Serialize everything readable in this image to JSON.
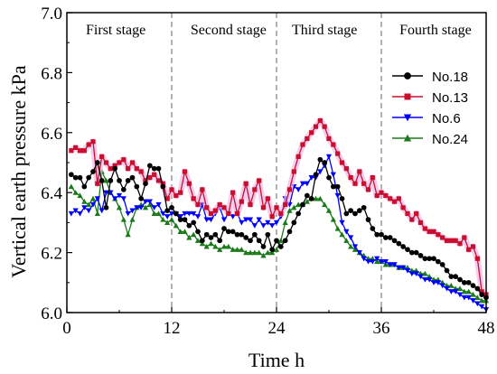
{
  "chart_data": {
    "type": "line",
    "xlabel": "Time h",
    "ylabel": "Vertical earth pressure kPa",
    "xlim": [
      0,
      48
    ],
    "ylim": [
      6.0,
      7.0
    ],
    "xticks": [
      0,
      12,
      24,
      36,
      48
    ],
    "yticks": [
      6.0,
      6.2,
      6.4,
      6.6,
      6.8,
      7.0
    ],
    "stage_dividers": [
      12,
      24,
      36
    ],
    "stages": [
      {
        "label": "First stage",
        "x_center": 5.6
      },
      {
        "label": "Second stage",
        "x_center": 18.5
      },
      {
        "label": "Third stage",
        "x_center": 29.5
      },
      {
        "label": "Fourth stage",
        "x_center": 42.2
      }
    ],
    "legend_position": "right",
    "series": [
      {
        "name": "No.18",
        "color": "#000000",
        "marker": "circle",
        "x": [
          0.5,
          1.0,
          1.5,
          2.0,
          2.5,
          3.0,
          3.5,
          4.0,
          4.5,
          5.0,
          5.5,
          6.0,
          6.5,
          7.0,
          7.5,
          8.0,
          8.5,
          9.0,
          9.5,
          10.0,
          10.5,
          11.0,
          11.5,
          12.0,
          12.5,
          13.0,
          13.5,
          14.0,
          14.5,
          15.0,
          15.5,
          16.0,
          16.5,
          17.0,
          17.5,
          18.0,
          18.5,
          19.0,
          19.5,
          20.0,
          20.5,
          21.0,
          21.5,
          22.0,
          22.5,
          23.0,
          23.5,
          24.0,
          24.5,
          25.0,
          25.5,
          26.0,
          26.5,
          27.0,
          27.5,
          28.0,
          28.5,
          29.0,
          29.5,
          30.0,
          30.5,
          31.0,
          31.5,
          32.0,
          32.5,
          33.0,
          33.5,
          34.0,
          34.5,
          35.0,
          35.5,
          36.0,
          36.5,
          37.0,
          37.5,
          38.0,
          38.5,
          39.0,
          39.5,
          40.0,
          40.5,
          41.0,
          41.5,
          42.0,
          42.5,
          43.0,
          43.5,
          44.0,
          44.5,
          45.0,
          45.5,
          46.0,
          46.5,
          47.0,
          47.5,
          48.0
        ],
        "y": [
          6.46,
          6.45,
          6.45,
          6.42,
          6.45,
          6.47,
          6.5,
          6.44,
          6.35,
          6.44,
          6.48,
          6.44,
          6.41,
          6.44,
          6.45,
          6.42,
          6.38,
          6.43,
          6.49,
          6.48,
          6.48,
          6.42,
          6.34,
          6.35,
          6.33,
          6.31,
          6.31,
          6.29,
          6.3,
          6.27,
          6.24,
          6.26,
          6.25,
          6.26,
          6.24,
          6.28,
          6.27,
          6.27,
          6.26,
          6.26,
          6.25,
          6.24,
          6.26,
          6.24,
          6.22,
          6.26,
          6.21,
          6.24,
          6.22,
          6.24,
          6.27,
          6.3,
          6.33,
          6.36,
          6.39,
          6.38,
          6.46,
          6.51,
          6.5,
          6.45,
          6.42,
          6.42,
          6.38,
          6.33,
          6.34,
          6.33,
          6.34,
          6.35,
          6.31,
          6.28,
          6.26,
          6.26,
          6.25,
          6.25,
          6.24,
          6.23,
          6.22,
          6.21,
          6.2,
          6.2,
          6.19,
          6.18,
          6.18,
          6.18,
          6.17,
          6.16,
          6.14,
          6.12,
          6.12,
          6.11,
          6.1,
          6.1,
          6.09,
          6.08,
          6.06,
          6.05
        ]
      },
      {
        "name": "No.13",
        "color": "#c8102e",
        "marker": "square",
        "x": [
          0.5,
          1.0,
          1.5,
          2.0,
          2.5,
          3.0,
          3.5,
          4.0,
          4.5,
          5.0,
          5.5,
          6.0,
          6.5,
          7.0,
          7.5,
          8.0,
          8.5,
          9.0,
          9.5,
          10.0,
          10.5,
          11.0,
          11.5,
          12.0,
          12.5,
          13.0,
          13.5,
          14.0,
          14.5,
          15.0,
          15.5,
          16.0,
          16.5,
          17.0,
          17.5,
          18.0,
          18.5,
          19.0,
          19.5,
          20.0,
          20.5,
          21.0,
          21.5,
          22.0,
          22.5,
          23.0,
          23.5,
          24.0,
          24.5,
          25.0,
          25.5,
          26.0,
          26.5,
          27.0,
          27.5,
          28.0,
          28.5,
          29.0,
          29.5,
          30.0,
          30.5,
          31.0,
          31.5,
          32.0,
          32.5,
          33.0,
          33.5,
          34.0,
          34.5,
          35.0,
          35.5,
          36.0,
          36.5,
          37.0,
          37.5,
          38.0,
          38.5,
          39.0,
          39.5,
          40.0,
          40.5,
          41.0,
          41.5,
          42.0,
          42.5,
          43.0,
          43.5,
          44.0,
          44.5,
          45.0,
          45.5,
          46.0,
          46.5,
          47.0,
          47.5,
          48.0
        ],
        "y": [
          6.54,
          6.55,
          6.54,
          6.54,
          6.56,
          6.57,
          6.43,
          6.52,
          6.5,
          6.48,
          6.49,
          6.5,
          6.51,
          6.48,
          6.5,
          6.48,
          6.47,
          6.44,
          6.45,
          6.46,
          6.44,
          6.43,
          6.38,
          6.41,
          6.39,
          6.4,
          6.47,
          6.43,
          6.38,
          6.36,
          6.41,
          6.35,
          6.33,
          6.34,
          6.36,
          6.35,
          6.33,
          6.4,
          6.33,
          6.37,
          6.43,
          6.36,
          6.41,
          6.44,
          6.35,
          6.38,
          6.32,
          6.35,
          6.33,
          6.36,
          6.41,
          6.47,
          6.52,
          6.56,
          6.58,
          6.6,
          6.62,
          6.64,
          6.62,
          6.58,
          6.56,
          6.53,
          6.5,
          6.48,
          6.45,
          6.43,
          6.47,
          6.43,
          6.41,
          6.45,
          6.39,
          6.4,
          6.39,
          6.38,
          6.37,
          6.38,
          6.35,
          6.33,
          6.31,
          6.33,
          6.3,
          6.28,
          6.27,
          6.27,
          6.26,
          6.25,
          6.24,
          6.24,
          6.24,
          6.23,
          6.25,
          6.21,
          6.22,
          6.18,
          6.07,
          6.06
        ]
      },
      {
        "name": "No.6",
        "color": "#0000ff",
        "marker": "triangle-down",
        "x": [
          0.5,
          1.0,
          1.5,
          2.0,
          2.5,
          3.0,
          3.5,
          4.0,
          4.5,
          5.0,
          5.5,
          6.0,
          6.5,
          7.0,
          7.5,
          8.0,
          8.5,
          9.0,
          9.5,
          10.0,
          10.5,
          11.0,
          11.5,
          12.0,
          12.5,
          13.0,
          13.5,
          14.0,
          14.5,
          15.0,
          15.5,
          16.0,
          16.5,
          17.0,
          17.5,
          18.0,
          18.5,
          19.0,
          19.5,
          20.0,
          20.5,
          21.0,
          21.5,
          22.0,
          22.5,
          23.0,
          23.5,
          24.0,
          24.5,
          25.0,
          25.5,
          26.0,
          26.5,
          27.0,
          27.5,
          28.0,
          28.5,
          29.0,
          29.5,
          30.0,
          30.5,
          31.0,
          31.5,
          32.0,
          32.5,
          33.0,
          33.5,
          34.0,
          34.5,
          35.0,
          35.5,
          36.0,
          36.5,
          37.0,
          37.5,
          38.0,
          38.5,
          39.0,
          39.5,
          40.0,
          40.5,
          41.0,
          41.5,
          42.0,
          42.5,
          43.0,
          43.5,
          44.0,
          44.5,
          45.0,
          45.5,
          46.0,
          46.5,
          47.0,
          47.5,
          48.0
        ],
        "y": [
          6.33,
          6.34,
          6.33,
          6.35,
          6.34,
          6.36,
          6.38,
          6.34,
          6.4,
          6.4,
          6.38,
          6.39,
          6.38,
          6.33,
          6.34,
          6.35,
          6.35,
          6.37,
          6.37,
          6.35,
          6.36,
          6.33,
          6.32,
          6.33,
          6.33,
          6.32,
          6.33,
          6.33,
          6.33,
          6.32,
          6.36,
          6.31,
          6.31,
          6.33,
          6.35,
          6.31,
          6.33,
          6.32,
          6.33,
          6.3,
          6.31,
          6.31,
          6.29,
          6.31,
          6.29,
          6.3,
          6.29,
          6.3,
          6.32,
          6.38,
          6.36,
          6.42,
          6.41,
          6.43,
          6.43,
          6.45,
          6.45,
          6.47,
          6.49,
          6.52,
          6.46,
          6.39,
          6.3,
          6.27,
          6.25,
          6.22,
          6.2,
          6.18,
          6.17,
          6.17,
          6.18,
          6.17,
          6.17,
          6.16,
          6.16,
          6.15,
          6.15,
          6.14,
          6.13,
          6.13,
          6.12,
          6.11,
          6.11,
          6.1,
          6.1,
          6.09,
          6.08,
          6.07,
          6.07,
          6.06,
          6.05,
          6.05,
          6.04,
          6.03,
          6.02,
          6.01
        ]
      },
      {
        "name": "No.24",
        "color": "#1a7a1a",
        "marker": "triangle-up",
        "x": [
          0.5,
          1.0,
          1.5,
          2.0,
          2.5,
          3.0,
          3.5,
          4.0,
          4.5,
          5.0,
          5.5,
          6.0,
          6.5,
          7.0,
          7.5,
          8.0,
          8.5,
          9.0,
          9.5,
          10.0,
          10.5,
          11.0,
          11.5,
          12.0,
          12.5,
          13.0,
          13.5,
          14.0,
          14.5,
          15.0,
          15.5,
          16.0,
          16.5,
          17.0,
          17.5,
          18.0,
          18.5,
          19.0,
          19.5,
          20.0,
          20.5,
          21.0,
          21.5,
          22.0,
          22.5,
          23.0,
          23.5,
          24.0,
          24.5,
          25.0,
          25.5,
          26.0,
          26.5,
          27.0,
          27.5,
          28.0,
          28.5,
          29.0,
          29.5,
          30.0,
          30.5,
          31.0,
          31.5,
          32.0,
          32.5,
          33.0,
          33.5,
          34.0,
          34.5,
          35.0,
          35.5,
          36.0,
          36.5,
          37.0,
          37.5,
          38.0,
          38.5,
          39.0,
          39.5,
          40.0,
          40.5,
          41.0,
          41.5,
          42.0,
          42.5,
          43.0,
          43.5,
          44.0,
          44.5,
          45.0,
          45.5,
          46.0,
          46.5,
          47.0,
          47.5,
          48.0
        ],
        "y": [
          6.42,
          6.4,
          6.39,
          6.37,
          6.36,
          6.38,
          6.33,
          6.47,
          6.44,
          6.4,
          6.38,
          6.35,
          6.31,
          6.26,
          6.31,
          6.35,
          6.36,
          6.35,
          6.36,
          6.33,
          6.33,
          6.31,
          6.3,
          6.31,
          6.29,
          6.27,
          6.27,
          6.25,
          6.26,
          6.24,
          6.23,
          6.22,
          6.23,
          6.22,
          6.21,
          6.22,
          6.22,
          6.21,
          6.21,
          6.21,
          6.2,
          6.2,
          6.2,
          6.2,
          6.19,
          6.2,
          6.2,
          6.21,
          6.24,
          6.3,
          6.34,
          6.35,
          6.36,
          6.36,
          6.37,
          6.38,
          6.38,
          6.38,
          6.36,
          6.34,
          6.31,
          6.28,
          6.26,
          6.24,
          6.22,
          6.21,
          6.2,
          6.19,
          6.18,
          6.18,
          6.17,
          6.17,
          6.16,
          6.16,
          6.16,
          6.15,
          6.15,
          6.15,
          6.14,
          6.14,
          6.13,
          6.13,
          6.12,
          6.11,
          6.11,
          6.1,
          6.09,
          6.09,
          6.08,
          6.08,
          6.07,
          6.07,
          6.06,
          6.05,
          6.04,
          6.04
        ]
      }
    ]
  }
}
